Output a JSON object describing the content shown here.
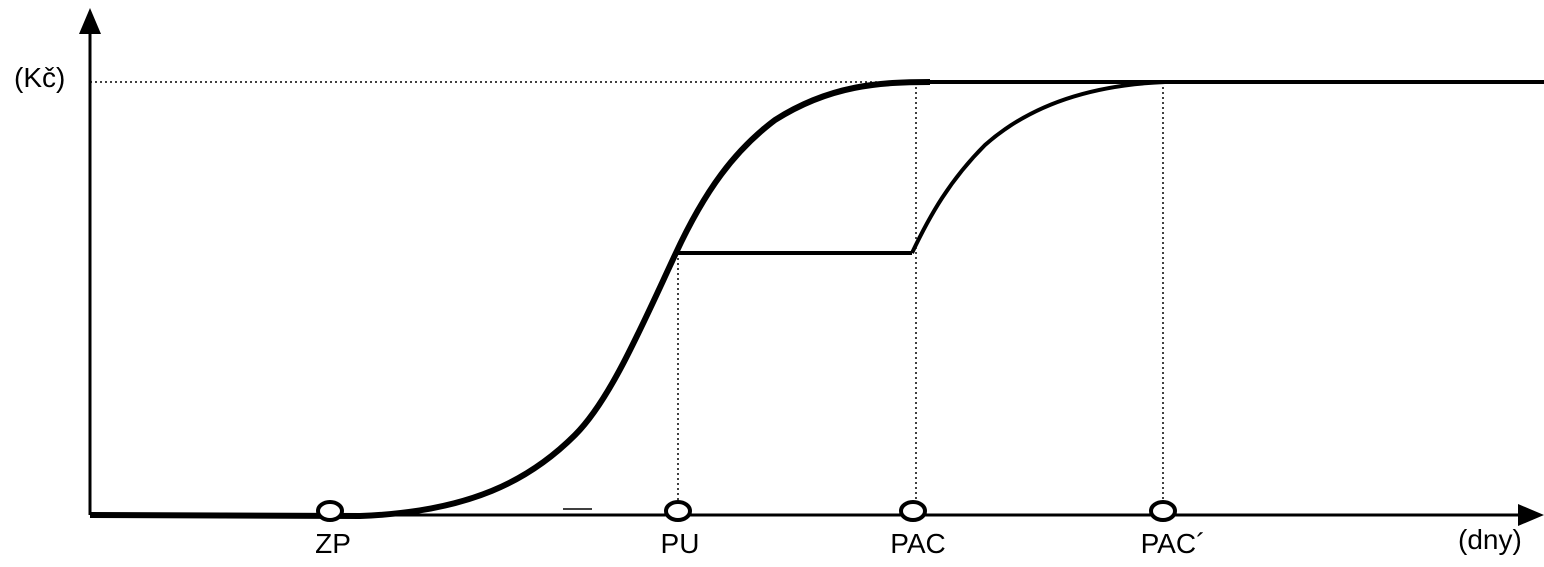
{
  "axes": {
    "y_unit": "(Kč)",
    "x_unit": "(dny)"
  },
  "milestones": [
    {
      "id": "zp",
      "label": "ZP"
    },
    {
      "id": "pu",
      "label": "PU"
    },
    {
      "id": "pac",
      "label": "PAC"
    },
    {
      "id": "pac2",
      "label": "PAC´"
    }
  ],
  "colors": {
    "line": "#000000",
    "background": "#ffffff"
  }
}
